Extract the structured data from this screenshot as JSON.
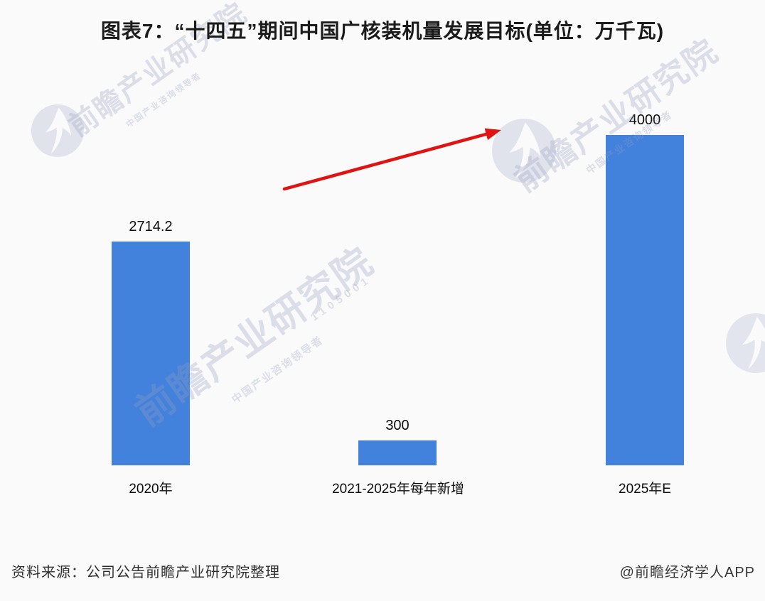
{
  "title": "图表7：“十四五”期间中国广核装机量发展目标(单位：万千瓦)",
  "chart_data": {
    "type": "bar",
    "title": "“十四五”期间中国广核装机量发展目标",
    "unit": "万千瓦",
    "categories": [
      "2020年",
      "2021-2025年每年新增",
      "2025年E"
    ],
    "values": [
      2714.2,
      300,
      4000
    ],
    "value_labels": [
      "2714.2",
      "300",
      "4000"
    ],
    "ylim": [
      0,
      4000
    ],
    "bar_color": "#4281dc",
    "grid": false,
    "legend": "none",
    "annotations": [
      {
        "type": "arrow",
        "color": "#e01313"
      }
    ]
  },
  "watermark": {
    "brand": "前瞻产业研究院",
    "tagline": "中国产业咨询领导者",
    "code": "1105001",
    "logo": "qianzhan-circle-logo"
  },
  "footer": {
    "source": "资料来源：公司公告前瞻产业研究院整理",
    "credit": "@前瞻经济学人APP"
  }
}
